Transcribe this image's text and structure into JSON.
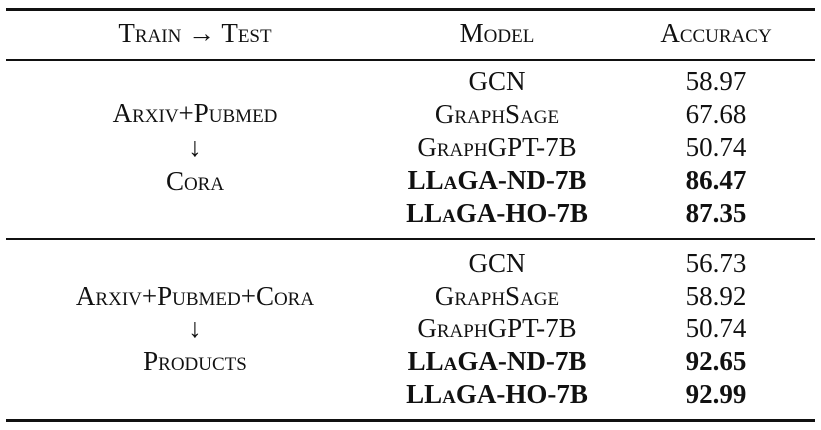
{
  "table": {
    "headers": [
      "Train → Test",
      "Model",
      "Accuracy"
    ],
    "groups": [
      {
        "train": "Arxiv+Pubmed",
        "arrow": "↓",
        "test": "Cora",
        "rows": [
          {
            "model": "GCN",
            "accuracy": "58.97",
            "bold": false
          },
          {
            "model": "GraphSage",
            "accuracy": "67.68",
            "bold": false
          },
          {
            "model": "GraphGPT-7B",
            "accuracy": "50.74",
            "bold": false
          },
          {
            "model": "LLaGA-ND-7B",
            "accuracy": "86.47",
            "bold": true
          },
          {
            "model": "LLaGA-HO-7B",
            "accuracy": "87.35",
            "bold": true
          }
        ]
      },
      {
        "train": "Arxiv+Pubmed+Cora",
        "arrow": "↓",
        "test": "Products",
        "rows": [
          {
            "model": "GCN",
            "accuracy": "56.73",
            "bold": false
          },
          {
            "model": "GraphSage",
            "accuracy": "58.92",
            "bold": false
          },
          {
            "model": "GraphGPT-7B",
            "accuracy": "50.74",
            "bold": false
          },
          {
            "model": "LLaGA-ND-7B",
            "accuracy": "92.65",
            "bold": true
          },
          {
            "model": "LLaGA-HO-7B",
            "accuracy": "92.99",
            "bold": true
          }
        ]
      }
    ]
  }
}
